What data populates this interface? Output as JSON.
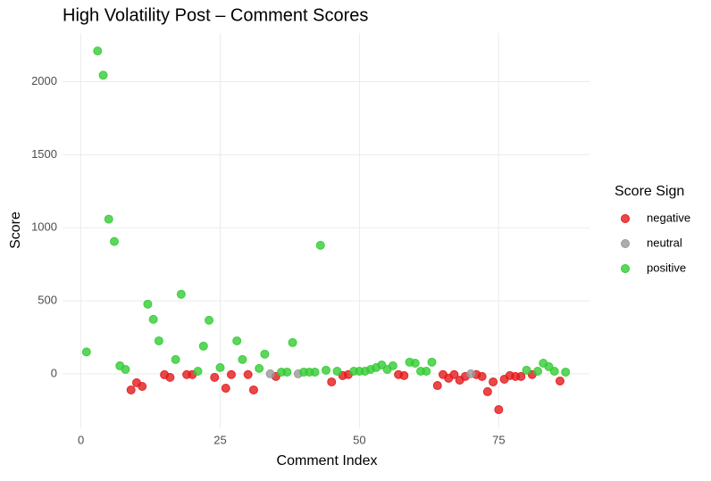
{
  "chart_data": {
    "type": "scatter",
    "title": "High Volatility Post – Comment Scores",
    "x_label": "Comment Index",
    "y_label": "Score",
    "legend_title": "Score Sign",
    "xlim": [
      -3.3,
      91.3
    ],
    "ylim": [
      -373,
      2333
    ],
    "xticks": [
      0,
      25,
      50,
      75
    ],
    "yticks": [
      0,
      500,
      1000,
      1500,
      2000
    ],
    "grid": true,
    "legend": "right",
    "series": [
      {
        "name": "negative",
        "color": "#e41a1c",
        "x": [
          9,
          10,
          11,
          15,
          16,
          19,
          20,
          24,
          26,
          27,
          30,
          31,
          35,
          45,
          47,
          48,
          57,
          58,
          64,
          65,
          66,
          67,
          68,
          69,
          71,
          72,
          73,
          74,
          75,
          76,
          77,
          78,
          79,
          81,
          86
        ],
        "values": [
          -110,
          -61,
          -86,
          -6,
          -24,
          -5,
          -5,
          -24,
          -98,
          -5,
          -5,
          -110,
          -18,
          -55,
          -12,
          -5,
          -5,
          -12,
          -80,
          -5,
          -30,
          -5,
          -43,
          -18,
          -5,
          -18,
          -122,
          -55,
          -245,
          -37,
          -12,
          -18,
          -18,
          -5,
          -49
        ]
      },
      {
        "name": "neutral",
        "color": "#999999",
        "x": [
          34,
          39,
          70
        ],
        "values": [
          0,
          0,
          0
        ]
      },
      {
        "name": "positive",
        "color": "#33cc33",
        "x": [
          1,
          3,
          4,
          5,
          6,
          7,
          8,
          12,
          13,
          14,
          17,
          18,
          21,
          22,
          23,
          25,
          28,
          29,
          32,
          33,
          36,
          37,
          38,
          40,
          41,
          42,
          43,
          44,
          46,
          49,
          50,
          51,
          52,
          53,
          54,
          55,
          56,
          59,
          60,
          61,
          62,
          63,
          80,
          82,
          83,
          84,
          85,
          87
        ],
        "values": [
          150,
          2210,
          2044,
          1059,
          906,
          55,
          30,
          477,
          373,
          226,
          98,
          545,
          18,
          190,
          367,
          43,
          226,
          98,
          37,
          135,
          12,
          12,
          214,
          12,
          12,
          12,
          880,
          25,
          18,
          18,
          18,
          18,
          30,
          43,
          61,
          30,
          55,
          80,
          73,
          18,
          18,
          80,
          25,
          18,
          73,
          49,
          18,
          12
        ]
      }
    ]
  }
}
